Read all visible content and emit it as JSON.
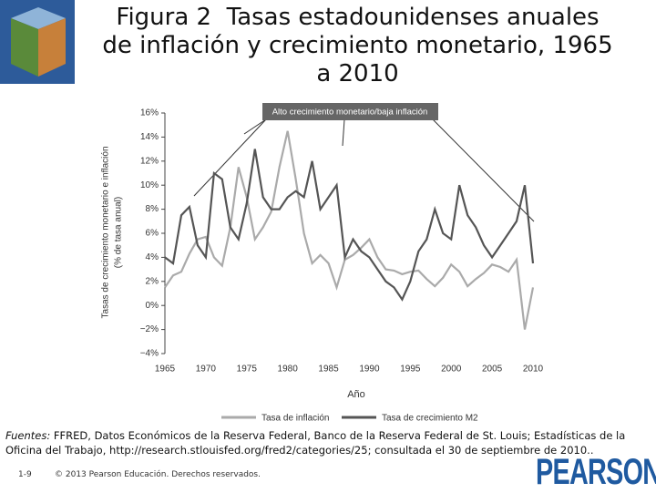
{
  "header": {
    "title": "Figura 2  Tasas estadounidenses anuales de inflación y crecimiento monetario, 1965 a 2010"
  },
  "chart_data": {
    "type": "line",
    "annotation": "Alto crecimiento monetario/baja inflación",
    "ylabel": [
      "Tasas de crecimiento monetario e inflación",
      "(% de tasa anual)"
    ],
    "xlabel": "Año",
    "x": [
      1965,
      1966,
      1967,
      1968,
      1969,
      1970,
      1971,
      1972,
      1973,
      1974,
      1975,
      1976,
      1977,
      1978,
      1979,
      1980,
      1981,
      1982,
      1983,
      1984,
      1985,
      1986,
      1987,
      1988,
      1989,
      1990,
      1991,
      1992,
      1993,
      1994,
      1995,
      1996,
      1997,
      1998,
      1999,
      2000,
      2001,
      2002,
      2003,
      2004,
      2005,
      2006,
      2007,
      2008,
      2009,
      2010
    ],
    "series": [
      {
        "name": "Tasa de inflación",
        "color": "#aaaaaa",
        "values": [
          1.5,
          2.5,
          2.8,
          4.3,
          5.5,
          5.7,
          4.0,
          3.3,
          6.5,
          11.5,
          9.0,
          5.5,
          6.5,
          7.8,
          11.5,
          14.5,
          10.5,
          6.0,
          3.5,
          4.2,
          3.5,
          1.5,
          3.8,
          4.2,
          4.8,
          5.5,
          4.0,
          3.0,
          2.9,
          2.6,
          2.8,
          2.9,
          2.2,
          1.6,
          2.3,
          3.4,
          2.8,
          1.6,
          2.2,
          2.7,
          3.4,
          3.2,
          2.8,
          3.8,
          -2.0,
          1.5
        ]
      },
      {
        "name": "Tasa de crecimiento M2",
        "color": "#555555",
        "values": [
          4.0,
          3.5,
          7.5,
          8.2,
          5.0,
          4.0,
          11.0,
          10.5,
          6.5,
          5.5,
          8.5,
          13.0,
          9.0,
          8.0,
          8.0,
          9.0,
          9.5,
          9.0,
          12.0,
          8.0,
          9.0,
          10.0,
          4.0,
          5.5,
          4.5,
          4.0,
          3.0,
          2.0,
          1.5,
          0.5,
          2.0,
          4.5,
          5.5,
          8.0,
          6.0,
          5.5,
          10.0,
          7.5,
          6.5,
          5.0,
          4.0,
          5.0,
          6.0,
          7.0,
          10.0,
          3.5
        ]
      }
    ],
    "xlim": [
      1965,
      2010
    ],
    "xticks": [
      1965,
      1970,
      1975,
      1980,
      1985,
      1990,
      1995,
      2000,
      2005,
      2010
    ],
    "ylim": [
      -4,
      16
    ],
    "yticks": [
      {
        "value": -4,
        "label": "−4%"
      },
      {
        "value": -2,
        "label": "−2%"
      },
      {
        "value": 0,
        "label": "0%"
      },
      {
        "value": 2,
        "label": "2%"
      },
      {
        "value": 4,
        "label": "4%"
      },
      {
        "value": 6,
        "label": "6%"
      },
      {
        "value": 8,
        "label": "8%"
      },
      {
        "value": 10,
        "label": "10%"
      },
      {
        "value": 12,
        "label": "12%"
      },
      {
        "value": 14,
        "label": "14%"
      },
      {
        "value": 16,
        "label": "16%"
      }
    ]
  },
  "source": {
    "label": "Fuentes:",
    "text": "FFRED, Datos Económicos de la Reserva Federal, Banco de la Reserva Federal de St. Louis; Estadísticas de la Oficina del Trabajo, http://research.stlouisfed.org/fred2/categories/25; consultada el 30 de septiembre de 2010.."
  },
  "footer": {
    "page": "1-9",
    "copyright": "© 2013 Pearson Educación. Derechos reservados.",
    "logo": "PEARSON"
  }
}
